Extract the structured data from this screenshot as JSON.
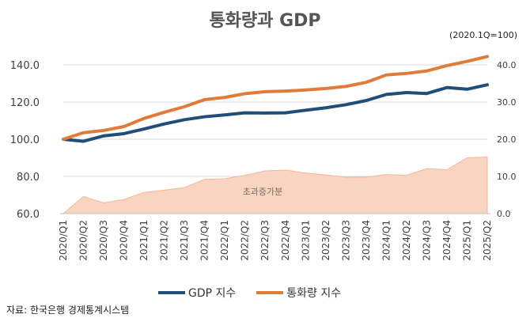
{
  "chart_data": {
    "type": "line",
    "title": "통화량과 GDP",
    "base_note": "(2020.1Q=100)",
    "source": "자료: 한국은행 경제통계시스템",
    "categories": [
      "2020/Q1",
      "2020/Q2",
      "2020/Q3",
      "2020/Q4",
      "2021/Q1",
      "2021/Q2",
      "2021/Q3",
      "2021/Q4",
      "2022/Q1",
      "2022/Q2",
      "2022/Q3",
      "2022/Q4",
      "2023/Q1",
      "2023/Q2",
      "2023/Q3",
      "2023/Q4",
      "2024/Q1",
      "2024/Q2",
      "2024/Q3",
      "2024/Q4",
      "2025/Q1",
      "2025/Q2"
    ],
    "left_axis": {
      "ylim": [
        60,
        140
      ],
      "ticks": [
        "60.0",
        "80.0",
        "100.0",
        "120.0",
        "140.0"
      ]
    },
    "right_axis": {
      "ylim": [
        0,
        40
      ],
      "ticks": [
        "0.0",
        "10.0",
        "20.0",
        "30.0",
        "40.0"
      ]
    },
    "grid": true,
    "legend_position": "bottom",
    "series": [
      {
        "name": "GDP 지수",
        "axis": "left",
        "color": "#1f4e79",
        "values": [
          100.0,
          98.9,
          101.8,
          103.0,
          105.5,
          108.2,
          110.5,
          112.1,
          113.1,
          114.2,
          114.1,
          114.2,
          115.6,
          116.9,
          118.6,
          120.8,
          124.1,
          125.1,
          124.6,
          127.8,
          126.9,
          129.3
        ]
      },
      {
        "name": "통화량 지수",
        "axis": "left",
        "color": "#e07b39",
        "values": [
          100.0,
          103.5,
          104.7,
          106.8,
          111.2,
          114.5,
          117.5,
          121.3,
          122.5,
          124.5,
          125.6,
          125.9,
          126.5,
          127.3,
          128.4,
          130.6,
          134.6,
          135.4,
          136.7,
          139.6,
          141.9,
          144.5
        ]
      },
      {
        "name": "초과증가분",
        "axis": "right",
        "color": "#f9d5c1",
        "type": "area",
        "values": [
          0.0,
          4.6,
          2.9,
          3.8,
          5.7,
          6.3,
          7.0,
          9.2,
          9.4,
          10.3,
          11.5,
          11.7,
          10.9,
          10.4,
          9.8,
          9.8,
          10.5,
          10.3,
          12.1,
          11.8,
          15.0,
          15.2
        ]
      }
    ],
    "area_label": "초과증가분",
    "colors": {
      "grid": "#d9d9d9",
      "axis_text": "#404040"
    }
  }
}
